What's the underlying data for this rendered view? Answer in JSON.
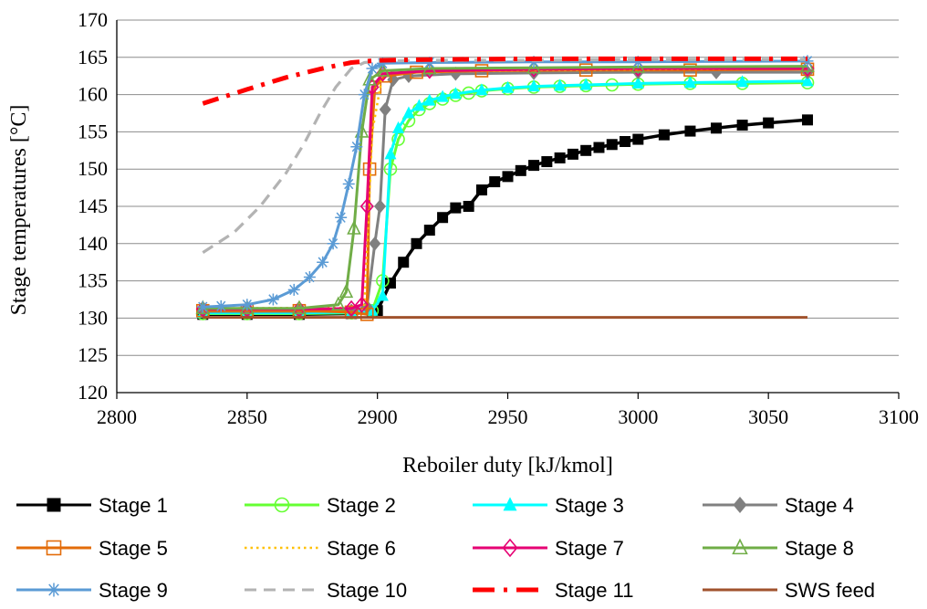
{
  "chart_data": {
    "type": "line",
    "title": "",
    "xlabel": "Reboiler duty [kJ/kmol]",
    "ylabel": "Stage temperatures [°C]",
    "xlim": [
      2800,
      3100
    ],
    "ylim": [
      120,
      170
    ],
    "x_ticks": [
      2800,
      2850,
      2900,
      2950,
      3000,
      3050,
      3100
    ],
    "y_ticks": [
      120,
      125,
      130,
      135,
      140,
      145,
      150,
      155,
      160,
      165,
      170
    ],
    "grid": "horizontal",
    "legend_position": "bottom",
    "series": [
      {
        "name": "Stage 1",
        "color": "#000000",
        "line": "solid",
        "marker": "square-filled",
        "x": [
          2833,
          2850,
          2870,
          2890,
          2898,
          2900,
          2905,
          2910,
          2915,
          2920,
          2925,
          2930,
          2935,
          2940,
          2945,
          2950,
          2955,
          2960,
          2965,
          2970,
          2975,
          2980,
          2985,
          2990,
          2995,
          3000,
          3010,
          3020,
          3030,
          3040,
          3050,
          3065
        ],
        "y": [
          130.5,
          130.5,
          130.5,
          130.6,
          130.8,
          131,
          134.7,
          137.5,
          140,
          141.8,
          143.5,
          144.8,
          145,
          147.2,
          148.3,
          149,
          149.8,
          150.5,
          151,
          151.5,
          152,
          152.5,
          152.9,
          153.3,
          153.7,
          154,
          154.6,
          155.1,
          155.5,
          155.9,
          156.2,
          156.6
        ]
      },
      {
        "name": "Stage 2",
        "color": "#66ff33",
        "line": "solid",
        "marker": "circle-open",
        "x": [
          2833,
          2850,
          2870,
          2890,
          2898,
          2902,
          2905,
          2908,
          2912,
          2916,
          2920,
          2925,
          2930,
          2935,
          2940,
          2950,
          2960,
          2970,
          2980,
          2990,
          3000,
          3020,
          3040,
          3065
        ],
        "y": [
          130.6,
          130.6,
          130.6,
          130.7,
          131,
          135,
          150,
          154,
          156.5,
          158,
          158.8,
          159.4,
          159.9,
          160.2,
          160.5,
          160.8,
          161,
          161.1,
          161.2,
          161.3,
          161.4,
          161.5,
          161.5,
          161.6
        ]
      },
      {
        "name": "Stage 3",
        "color": "#00ffff",
        "line": "solid",
        "marker": "triangle-filled",
        "x": [
          2833,
          2850,
          2870,
          2890,
          2898,
          2902,
          2905,
          2908,
          2912,
          2916,
          2920,
          2925,
          2930,
          2940,
          2950,
          2960,
          2970,
          2980,
          3000,
          3020,
          3040,
          3065
        ],
        "y": [
          130.7,
          130.7,
          130.7,
          130.8,
          131,
          133,
          152,
          155.5,
          157.5,
          158.5,
          159.2,
          159.7,
          160.1,
          160.6,
          160.9,
          161.1,
          161.2,
          161.3,
          161.5,
          161.6,
          161.7,
          161.8
        ]
      },
      {
        "name": "Stage 4",
        "color": "#808080",
        "line": "solid",
        "marker": "diamond-filled",
        "x": [
          2833,
          2850,
          2870,
          2890,
          2896,
          2899,
          2901,
          2903,
          2906,
          2912,
          2930,
          2960,
          3000,
          3030,
          3065
        ],
        "y": [
          130.9,
          130.9,
          130.9,
          131,
          131.5,
          140,
          145,
          158,
          162,
          162.5,
          162.8,
          162.9,
          163,
          163,
          163
        ]
      },
      {
        "name": "Stage 5",
        "color": "#e36c09",
        "line": "solid",
        "marker": "square-open",
        "x": [
          2833,
          2850,
          2870,
          2890,
          2896,
          2897,
          2899,
          2903,
          2915,
          2940,
          2980,
          3020,
          3065
        ],
        "y": [
          131,
          131,
          131,
          130.8,
          130.5,
          150,
          161,
          162.5,
          163,
          163.2,
          163.3,
          163.3,
          163.4
        ]
      },
      {
        "name": "Stage 6",
        "color": "#ffc000",
        "line": "dotted",
        "marker": "none",
        "x": [
          2833,
          2890,
          2895,
          2898,
          2902,
          2920,
          3000,
          3065
        ],
        "y": [
          131.3,
          131.4,
          131.8,
          155,
          162.8,
          163.2,
          163.4,
          163.5
        ]
      },
      {
        "name": "Stage 7",
        "color": "#e60073",
        "line": "solid",
        "marker": "diamond-open",
        "x": [
          2833,
          2850,
          2870,
          2890,
          2894,
          2896,
          2898,
          2902,
          2920,
          2960,
          3000,
          3065
        ],
        "y": [
          131.2,
          131.2,
          131.2,
          131.3,
          131.8,
          145,
          161,
          162.8,
          163.2,
          163.4,
          163.5,
          163.5
        ]
      },
      {
        "name": "Stage 8",
        "color": "#70ad47",
        "line": "solid",
        "marker": "triangle-open",
        "x": [
          2833,
          2850,
          2870,
          2885,
          2888,
          2891,
          2894,
          2897,
          2902,
          2920,
          2960,
          3000,
          3065
        ],
        "y": [
          131.3,
          131.3,
          131.3,
          131.8,
          133.5,
          142,
          155,
          162,
          163.2,
          163.5,
          163.6,
          163.7,
          163.8
        ]
      },
      {
        "name": "Stage 9",
        "color": "#5b9bd5",
        "line": "solid",
        "marker": "star",
        "x": [
          2833,
          2840,
          2850,
          2860,
          2868,
          2874,
          2879,
          2883,
          2886,
          2889,
          2892,
          2895,
          2898,
          2902,
          2920,
          2960,
          3000,
          3065
        ],
        "y": [
          131.5,
          131.6,
          131.8,
          132.5,
          133.8,
          135.5,
          137.5,
          140,
          143.5,
          148,
          153,
          160,
          163.5,
          164.2,
          164.3,
          164.4,
          164.4,
          164.5
        ]
      },
      {
        "name": "Stage 10",
        "color": "#b3b3b3",
        "line": "dashed",
        "marker": "none",
        "x": [
          2833,
          2845,
          2855,
          2865,
          2872,
          2878,
          2884,
          2890,
          2895,
          2900,
          2920,
          2960,
          3000,
          3065
        ],
        "y": [
          138.8,
          141.5,
          145,
          149.5,
          153.5,
          157.5,
          161,
          163.5,
          164.3,
          164.5,
          164.6,
          164.6,
          164.7,
          164.7
        ]
      },
      {
        "name": "Stage 11",
        "color": "#ff0000",
        "line": "dash-dot",
        "marker": "none",
        "x": [
          2833,
          2850,
          2865,
          2880,
          2890,
          2900,
          2920,
          2960,
          3000,
          3065
        ],
        "y": [
          158.8,
          160.7,
          162.3,
          163.6,
          164.3,
          164.6,
          164.7,
          164.8,
          164.8,
          164.8
        ]
      },
      {
        "name": "SWS feed",
        "color": "#a0522d",
        "line": "solid",
        "marker": "none",
        "x": [
          2833,
          3065
        ],
        "y": [
          130.1,
          130.1
        ]
      }
    ]
  }
}
